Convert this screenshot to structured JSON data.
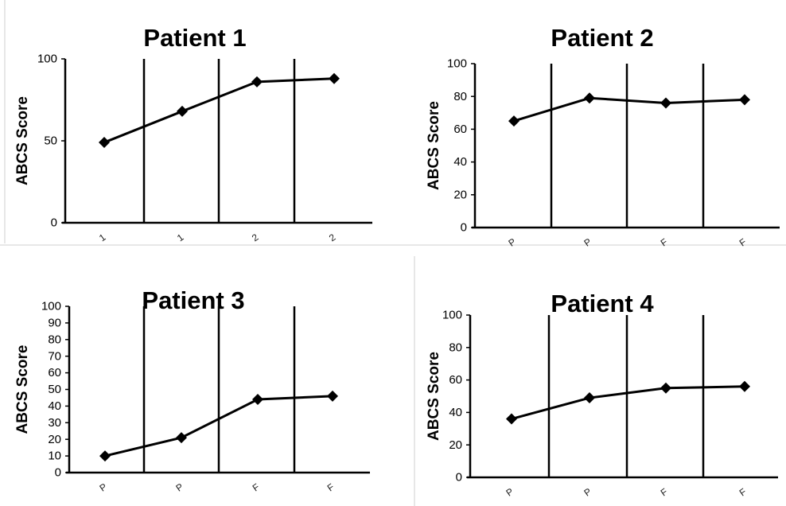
{
  "chart_data": [
    {
      "type": "line",
      "title": "Patient 1",
      "ylabel": "ABCS Score",
      "xlabel": "",
      "ylim": [
        0,
        100
      ],
      "yticks": [
        0,
        50,
        100
      ],
      "categories": [
        "1",
        "1",
        "2",
        "2"
      ],
      "series": [
        {
          "values": [
            49,
            68,
            86,
            88
          ]
        }
      ],
      "marker": "diamond",
      "color": "#000000",
      "vertical_gridlines": true
    },
    {
      "type": "line",
      "title": "Patient 2",
      "ylabel": "ABCS Score",
      "xlabel": "",
      "ylim": [
        0,
        100
      ],
      "yticks": [
        0,
        20,
        40,
        60,
        80,
        100
      ],
      "categories": [
        "P",
        "P",
        "F",
        "F"
      ],
      "series": [
        {
          "values": [
            65,
            79,
            76,
            78
          ]
        }
      ],
      "marker": "diamond",
      "color": "#000000",
      "vertical_gridlines": true
    },
    {
      "type": "line",
      "title": "Patient 3",
      "ylabel": "ABCS Score",
      "xlabel": "",
      "ylim": [
        0,
        100
      ],
      "yticks": [
        0,
        10,
        20,
        30,
        40,
        50,
        60,
        70,
        80,
        90,
        100
      ],
      "categories": [
        "P",
        "P",
        "F",
        "F"
      ],
      "series": [
        {
          "values": [
            10,
            21,
            44,
            46
          ]
        }
      ],
      "marker": "diamond",
      "color": "#000000",
      "vertical_gridlines": true
    },
    {
      "type": "line",
      "title": "Patient 4",
      "ylabel": "ABCS Score",
      "xlabel": "",
      "ylim": [
        0,
        100
      ],
      "yticks": [
        0,
        20,
        40,
        60,
        80,
        100
      ],
      "categories": [
        "P",
        "P",
        "F",
        "F"
      ],
      "series": [
        {
          "values": [
            36,
            49,
            55,
            56
          ]
        }
      ],
      "marker": "diamond",
      "color": "#000000",
      "vertical_gridlines": true
    }
  ]
}
